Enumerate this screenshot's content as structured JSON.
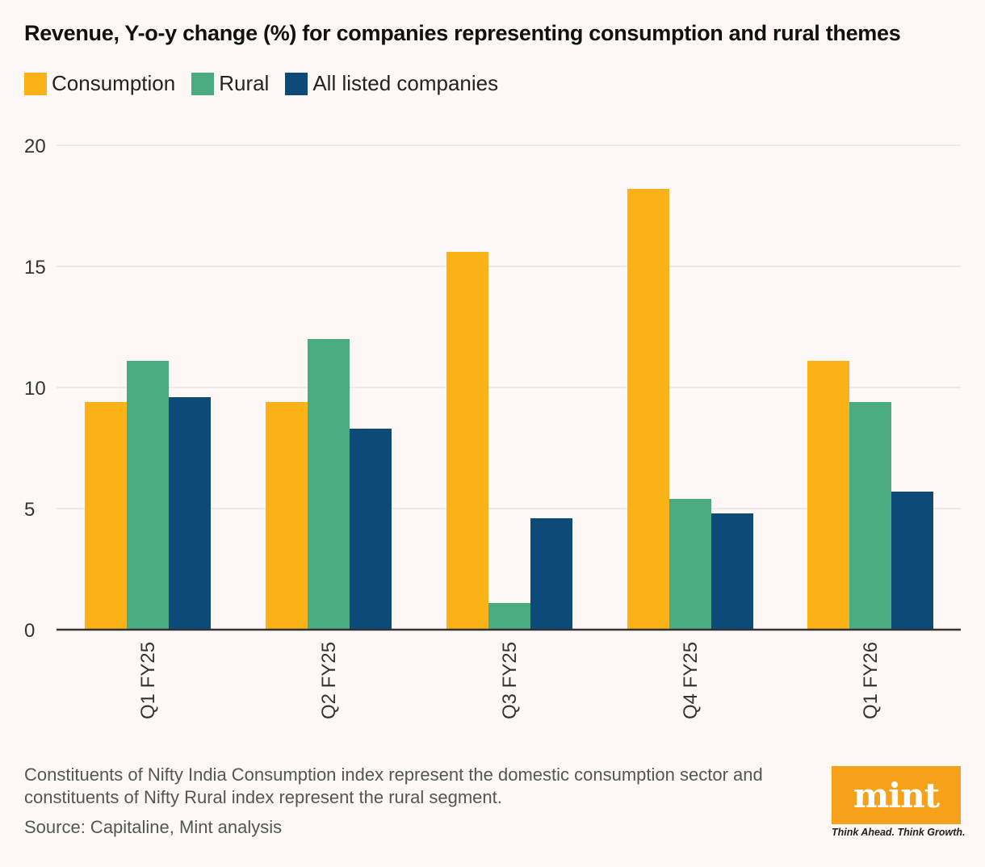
{
  "chart_data": {
    "type": "bar",
    "title": "Revenue, Y-o-y change (%) for companies representing consumption and rural themes",
    "categories": [
      "Q1 FY25",
      "Q2 FY25",
      "Q3 FY25",
      "Q4 FY25",
      "Q1 FY26"
    ],
    "series": [
      {
        "name": "Consumption",
        "color": "#fbb216",
        "values": [
          9.4,
          9.4,
          15.6,
          18.2,
          11.1
        ]
      },
      {
        "name": "Rural",
        "color": "#4aab80",
        "values": [
          11.1,
          12.0,
          1.1,
          5.4,
          9.4
        ]
      },
      {
        "name": "All listed companies",
        "color": "#0c4a78",
        "values": [
          9.6,
          8.3,
          4.6,
          4.8,
          5.7
        ]
      }
    ],
    "ylim": [
      0,
      20
    ],
    "yticks": [
      0,
      5,
      10,
      15,
      20
    ],
    "xlabel": "",
    "ylabel": "",
    "legend": "top-left",
    "grid": true
  },
  "footer": {
    "note": "Constituents of Nifty India Consumption index represent the domestic consumption sector and constituents of Nifty Rural index represent the rural segment.",
    "source": "Source: Capitaline, Mint analysis"
  },
  "logo": {
    "name": "mint",
    "tagline": "Think Ahead. Think Growth.",
    "color": "#f6a11a"
  }
}
